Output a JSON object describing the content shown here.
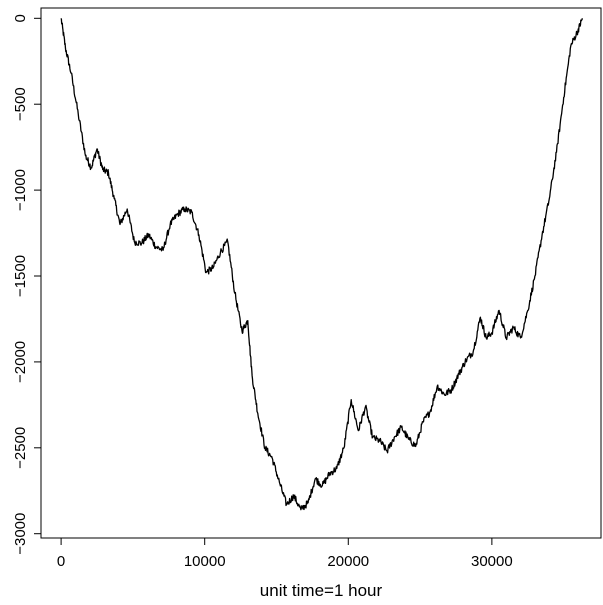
{
  "chart_data": {
    "type": "line",
    "title": "",
    "xlabel": "unit time=1 hour",
    "ylabel": "",
    "xlim": [
      -1400,
      37600
    ],
    "ylim": [
      -3025,
      60
    ],
    "x_ticks": [
      0,
      10000,
      20000,
      30000
    ],
    "x_tick_labels": [
      "0",
      "10000",
      "20000",
      "30000"
    ],
    "y_ticks": [
      0,
      -500,
      -1000,
      -1500,
      -2000,
      -2500,
      -3000
    ],
    "y_tick_labels": [
      "0",
      "-500",
      "-1000",
      "-1500",
      "-2000",
      "-2500",
      "-3000"
    ],
    "grid": false,
    "line_color": "#000000",
    "series": [
      {
        "x": [
          0,
          300,
          700,
          1200,
          1700,
          2100,
          2500,
          2900,
          3300,
          3700,
          4100,
          4600,
          5100,
          5600,
          6100,
          6600,
          7100,
          7600,
          8100,
          8600,
          9100,
          9600,
          10100,
          10600,
          11100,
          11600,
          12100,
          12600,
          13000,
          13300,
          13700,
          14200,
          14700,
          15200,
          15700,
          16200,
          16700,
          17200,
          17700,
          18200,
          18700,
          19200,
          19700,
          20200,
          20700,
          21200,
          21700,
          22200,
          22700,
          23200,
          23700,
          24200,
          24700,
          25200,
          25700,
          26200,
          26700,
          27200,
          27700,
          28200,
          28700,
          29200,
          29600,
          30000,
          30500,
          31000,
          31500,
          32000,
          32500,
          33000,
          33500,
          34000,
          34500,
          35000,
          35500,
          36000,
          36300
        ],
        "y": [
          0,
          -170,
          -320,
          -560,
          -800,
          -870,
          -760,
          -880,
          -900,
          -1050,
          -1200,
          -1110,
          -1300,
          -1310,
          -1260,
          -1330,
          -1350,
          -1200,
          -1140,
          -1110,
          -1130,
          -1260,
          -1480,
          -1450,
          -1360,
          -1300,
          -1600,
          -1820,
          -1760,
          -2080,
          -2300,
          -2500,
          -2560,
          -2700,
          -2830,
          -2780,
          -2860,
          -2820,
          -2680,
          -2720,
          -2650,
          -2620,
          -2500,
          -2220,
          -2400,
          -2260,
          -2440,
          -2460,
          -2520,
          -2440,
          -2380,
          -2450,
          -2490,
          -2350,
          -2290,
          -2140,
          -2190,
          -2160,
          -2070,
          -1990,
          -1940,
          -1740,
          -1860,
          -1830,
          -1700,
          -1860,
          -1800,
          -1860,
          -1700,
          -1500,
          -1260,
          -1050,
          -780,
          -460,
          -160,
          -70,
          0
        ]
      }
    ]
  }
}
